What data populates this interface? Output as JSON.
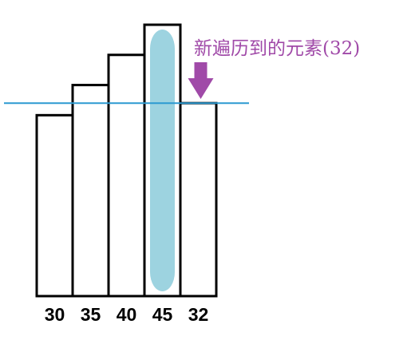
{
  "values": [
    30,
    35,
    40,
    45,
    32
  ],
  "highlight_index": 3,
  "pointer_index": 4,
  "annotation": "新遍历到的元素(32)",
  "colors": {
    "bar_stroke": "#000000",
    "highlight_fill": "#9dd3e0",
    "line": "#2c9ad1",
    "annotation": "#a04aa8",
    "arrow": "#a04aa8"
  }
}
